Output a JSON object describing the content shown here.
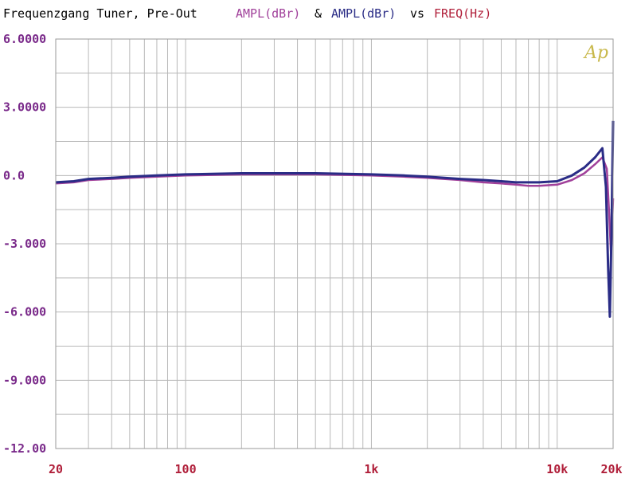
{
  "title": {
    "main": "Frequenzgang Tuner, Pre-Out",
    "s1": "AMPL(dBr)",
    "amp": "&",
    "s2": "AMPL(dBr)",
    "vs": "vs",
    "freq": "FREQ(Hz)"
  },
  "watermark": "Ap",
  "colors": {
    "title": "#000000",
    "series1": "#a0409a",
    "series2": "#2a2c86",
    "freq": "#b01f3a",
    "ytick": "#7a2a8a",
    "xtick": "#b01f3a",
    "grid": "#b8b8b8",
    "watermark": "#c8b84a"
  },
  "chart_data": {
    "type": "line",
    "title": "Frequenzgang Tuner, Pre-Out  AMPL(dBr) & AMPL(dBr) vs FREQ(Hz)",
    "xscale": "log",
    "xlim": [
      20,
      20000
    ],
    "ylim": [
      -12,
      6
    ],
    "grid": true,
    "yticks": [
      6,
      3,
      0,
      -3,
      -6,
      -9,
      -12
    ],
    "ytick_labels": [
      "6.0000",
      "3.0000",
      "0.0",
      "-3.000",
      "-6.000",
      "-9.000",
      "-12.00"
    ],
    "xticks": [
      20,
      100,
      1000,
      10000,
      20000
    ],
    "xtick_labels": [
      "20",
      "100",
      "1k",
      "10k",
      "20k"
    ],
    "series": [
      {
        "name": "AMPL(dBr)",
        "color": "#a0409a",
        "x": [
          20,
          25,
          30,
          40,
          50,
          70,
          100,
          200,
          500,
          1000,
          1500,
          2000,
          3000,
          4000,
          5000,
          6000,
          7000,
          8000,
          10000,
          12000,
          14000,
          16000,
          17500,
          18500,
          19000,
          19500,
          20000
        ],
        "y": [
          -0.35,
          -0.3,
          -0.2,
          -0.15,
          -0.1,
          -0.05,
          0.0,
          0.05,
          0.05,
          0.0,
          -0.05,
          -0.1,
          -0.2,
          -0.3,
          -0.35,
          -0.4,
          -0.45,
          -0.45,
          -0.4,
          -0.2,
          0.1,
          0.5,
          0.8,
          0.3,
          -1.5,
          -3.5,
          -1.0
        ]
      },
      {
        "name": "AMPL(dBr)",
        "color": "#2a2c86",
        "x": [
          20,
          25,
          30,
          40,
          50,
          70,
          100,
          200,
          500,
          1000,
          1500,
          2000,
          3000,
          4000,
          5000,
          6000,
          7000,
          8000,
          10000,
          12000,
          14000,
          16000,
          17500,
          18300,
          18800,
          19200,
          19600,
          20000
        ],
        "y": [
          -0.3,
          -0.25,
          -0.15,
          -0.1,
          -0.05,
          0.0,
          0.05,
          0.1,
          0.1,
          0.05,
          0.0,
          -0.05,
          -0.15,
          -0.2,
          -0.25,
          -0.3,
          -0.3,
          -0.3,
          -0.25,
          0.0,
          0.35,
          0.8,
          1.2,
          -0.5,
          -4.0,
          -6.2,
          -2.5,
          2.4
        ]
      }
    ]
  }
}
